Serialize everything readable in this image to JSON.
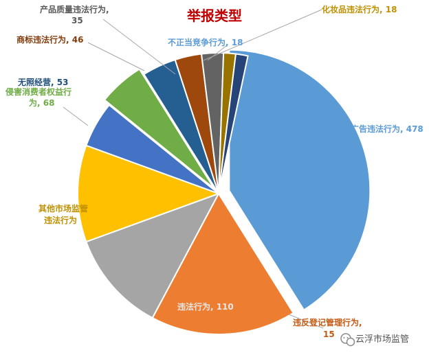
{
  "chart_data": {
    "type": "pie",
    "title": "举报类型",
    "slices": [
      {
        "label": "广告违法行为",
        "value": 478,
        "color": "#5B9BD5",
        "label_color": "#5B9BD5",
        "exploded": true
      },
      {
        "label": "违反登记管理行为",
        "value": 15,
        "color": "#ED7D31",
        "label_color": "#C65911",
        "exploded": false
      },
      {
        "label": "违法行为",
        "value": 110,
        "color": "#A5A5A5",
        "label_color": "#A5A5A5",
        "exploded": false
      },
      {
        "label": "其他市场监管违法行为",
        "value": null,
        "color": "#FFC000",
        "label_color": "#BF9000",
        "exploded": false
      },
      {
        "label": "",
        "value": null,
        "color": "#4472C4",
        "label_color": "#4472C4",
        "exploded": false
      },
      {
        "label": "侵害消费者权益行为",
        "value": 68,
        "color": "#70AD47",
        "label_color": "#70AD47",
        "exploded": true
      },
      {
        "label": "无照经营",
        "value": 53,
        "color": "#255E91",
        "label_color": "#1F4E79",
        "exploded": false
      },
      {
        "label": "商标违法行为",
        "value": 46,
        "color": "#9E480E",
        "label_color": "#843C0C",
        "exploded": false
      },
      {
        "label": "产品质量违法行为",
        "value": 35,
        "color": "#636363",
        "label_color": "#595959",
        "exploded": false
      },
      {
        "label": "化妆品违法行为",
        "value": 18,
        "color": "#997300",
        "label_color": "#BF9000",
        "exploded": false
      },
      {
        "label": "不正当竞争行为",
        "value": 18,
        "color": "#264478",
        "label_color": "#5B9BD5",
        "exploded": false
      }
    ]
  },
  "labels": {
    "title": "举报类型",
    "ad": "广告违法行为, 478",
    "reg_line1": "违反登记管理行为,",
    "reg_line2": "15",
    "illegal": "违法行为, 110",
    "other_line1": "其他市场监管",
    "other_line2": "违法行为",
    "consumer_line1": "侵害消费者权益行",
    "consumer_line2": "为, 68",
    "unlicensed": "无照经营, 53",
    "trademark": "商标违法行为, 46",
    "quality_line1": "产品质量违法行为,",
    "quality_line2": "35",
    "cosmetics": "化妆品违法行为, 18",
    "competition": "不正当竞争行为, 18"
  },
  "watermark": {
    "text": "云浮市场监管",
    "icon": "wechat-icon"
  }
}
